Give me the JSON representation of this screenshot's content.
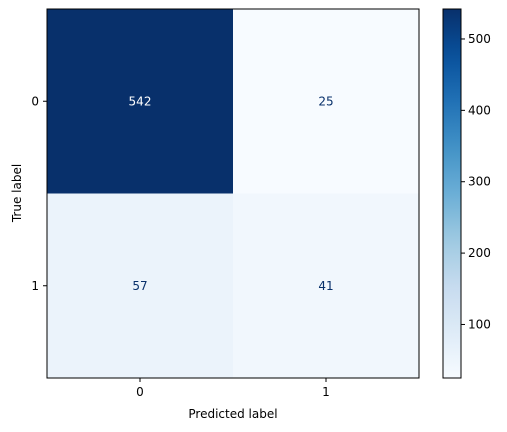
{
  "chart_data": {
    "type": "heatmap",
    "title": "",
    "xlabel": "Predicted label",
    "ylabel": "True label",
    "x_categories": [
      "0",
      "1"
    ],
    "y_categories": [
      "0",
      "1"
    ],
    "values": [
      [
        542,
        25
      ],
      [
        57,
        41
      ]
    ],
    "colormap": "Blues",
    "colorbar": {
      "vmin": 25,
      "vmax": 542,
      "ticks": [
        100,
        200,
        300,
        400,
        500
      ],
      "tick_labels": [
        "100",
        "200",
        "300",
        "400",
        "500"
      ]
    },
    "grid": false,
    "colors": {
      "low": "#f7fbff",
      "high": "#08306b",
      "text_dark": "#08306b",
      "text_light": "#ffffff"
    }
  }
}
